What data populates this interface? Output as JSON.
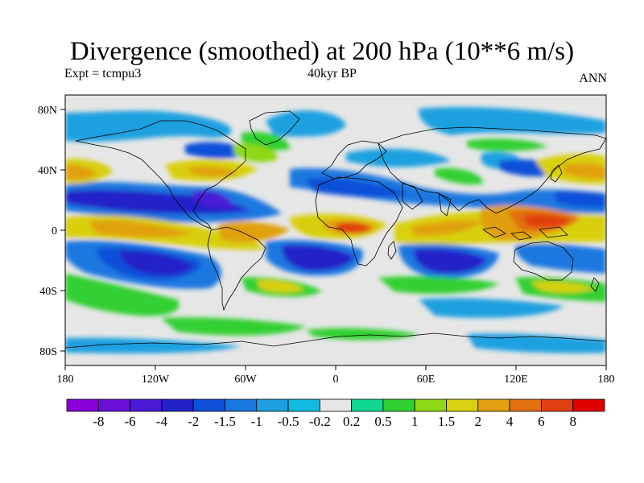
{
  "title": "Divergence (smoothed) at 200 hPa (10**6 m/s)",
  "experiment_label": "Expt = tcmpu3",
  "period_label": "40kyr BP",
  "season_label": "ANN",
  "map": {
    "projection": "cylindrical equidistant",
    "lon_range": [
      -180,
      180
    ],
    "lat_range": [
      -90,
      90
    ],
    "x_tick_labels": [
      "180",
      "120W",
      "60W",
      "0",
      "60E",
      "120E",
      "180"
    ],
    "y_tick_labels": [
      "80N",
      "40N",
      "0",
      "40S",
      "80S"
    ]
  },
  "colorbar": {
    "labels": [
      "-8",
      "-6",
      "-4",
      "-2",
      "-1.5",
      "-1",
      "-0.5",
      "-0.2",
      "0.2",
      "0.5",
      "1",
      "1.5",
      "2",
      "4",
      "6",
      "8"
    ],
    "colors": [
      "#8a00d8",
      "#6a10d8",
      "#4a1ad6",
      "#2222c8",
      "#1050d8",
      "#1a78e0",
      "#1ea0e0",
      "#10bae0",
      "#e6e6e6",
      "#10d890",
      "#30d030",
      "#90d818",
      "#d8d010",
      "#e0a010",
      "#e07010",
      "#e04010",
      "#e00000"
    ]
  }
}
